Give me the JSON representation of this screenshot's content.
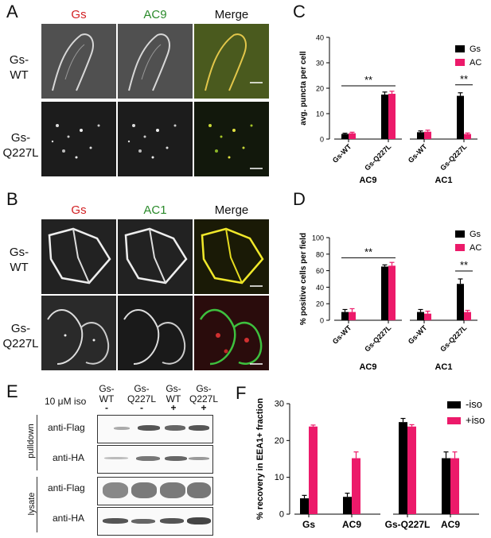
{
  "panel_letters": [
    "A",
    "B",
    "C",
    "D",
    "E",
    "F"
  ],
  "micro_a": {
    "col_labels": [
      "Gs",
      "AC9",
      "Merge"
    ],
    "row_labels": [
      "Gs-\nWT",
      "Gs-\nQ227L"
    ]
  },
  "micro_b": {
    "col_labels": [
      "Gs",
      "AC1",
      "Merge"
    ],
    "row_labels": [
      "Gs-\nWT",
      "Gs-\nQ227L"
    ]
  },
  "colors": {
    "gs_red": "#d21f22",
    "ac_green": "#2a8a2a",
    "black_series": "#000000",
    "pink_series": "#ec1a6a"
  },
  "blot": {
    "iso_label": "10 μM iso",
    "lanes": [
      {
        "header": "Gs-\nWT",
        "iso": "-"
      },
      {
        "header": "Gs-\nQ227L",
        "iso": "-"
      },
      {
        "header": "Gs-\nWT",
        "iso": "+"
      },
      {
        "header": "Gs-\nQ227L",
        "iso": "+"
      }
    ],
    "group_labels": [
      "pulldown",
      "lysate"
    ],
    "row_labels": [
      "anti-Flag",
      "anti-HA",
      "anti-Flag",
      "anti-HA"
    ]
  },
  "chart_data": [
    {
      "panel": "C",
      "type": "bar",
      "ylabel": "avg. puncta per cell",
      "ylim": [
        0,
        40
      ],
      "yticks": [
        0,
        10,
        20,
        30,
        40
      ],
      "groups": [
        {
          "label": "AC9",
          "categories": [
            "Gs-WT",
            "Gs-Q227L"
          ]
        },
        {
          "label": "AC1",
          "categories": [
            "Gs-WT",
            "Gs-Q227L"
          ]
        }
      ],
      "series": [
        {
          "name": "Gs",
          "values": [
            2,
            17.5,
            2.7,
            17
          ],
          "errors": [
            0.3,
            1,
            0.5,
            1.2
          ]
        },
        {
          "name": "AC",
          "values": [
            2.3,
            17.8,
            2.9,
            2
          ],
          "errors": [
            0.4,
            1,
            0.6,
            0.4
          ]
        }
      ],
      "significance": [
        {
          "text": "**",
          "group": 0,
          "type": "between-categories"
        },
        {
          "text": "**",
          "group": 1,
          "type": "between-series"
        }
      ],
      "legend": "top-right"
    },
    {
      "panel": "D",
      "type": "bar",
      "ylabel": "% positive cells per field",
      "ylim": [
        0,
        100
      ],
      "yticks": [
        0,
        20,
        40,
        60,
        80,
        100
      ],
      "groups": [
        {
          "label": "AC9",
          "categories": [
            "Gs-WT",
            "Gs-Q227L"
          ]
        },
        {
          "label": "AC1",
          "categories": [
            "Gs-WT",
            "Gs-Q227L"
          ]
        }
      ],
      "series": [
        {
          "name": "Gs",
          "values": [
            10,
            65,
            10,
            44
          ],
          "errors": [
            3,
            2,
            3,
            6
          ]
        },
        {
          "name": "AC",
          "values": [
            10,
            66,
            8,
            10
          ],
          "errors": [
            4,
            4,
            3,
            2
          ]
        }
      ],
      "significance": [
        {
          "text": "**",
          "group": 0,
          "type": "between-categories"
        },
        {
          "text": "**",
          "group": 1,
          "type": "between-series"
        }
      ],
      "legend": "top-right"
    },
    {
      "panel": "F",
      "type": "bar",
      "ylabel": "% recovery in EEA1+ fraction",
      "ylim": [
        0,
        30
      ],
      "yticks": [
        0,
        10,
        20,
        30
      ],
      "groups": [
        {
          "label": "",
          "categories": [
            "Gs",
            "AC9"
          ]
        },
        {
          "label": "",
          "categories": [
            "Gs-Q227L",
            "AC9"
          ]
        }
      ],
      "series": [
        {
          "name": "-iso",
          "values": [
            4.3,
            4.7,
            25,
            15.2
          ],
          "errors": [
            0.8,
            1,
            1,
            1.7
          ]
        },
        {
          "name": "+iso",
          "values": [
            23.8,
            15.2,
            23.8,
            15.2
          ],
          "errors": [
            0.4,
            1.7,
            0.5,
            1.7
          ]
        }
      ],
      "legend": "top-right"
    }
  ]
}
